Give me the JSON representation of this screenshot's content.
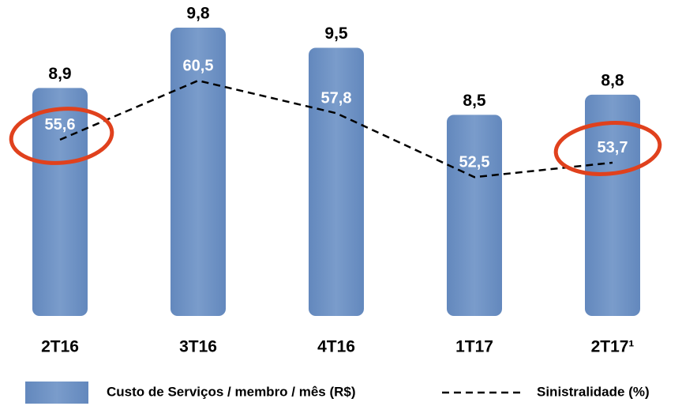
{
  "chart_data": {
    "type": "bar",
    "categories": [
      "2T16",
      "3T16",
      "4T16",
      "1T17",
      "2T17¹"
    ],
    "ylim": [
      5.5,
      10
    ],
    "y2lim": [
      41,
      66
    ],
    "series": [
      {
        "name": "Custo de Serviços / membro / mês (R$)",
        "type": "bar",
        "color": "#7093c4",
        "values": [
          8.9,
          9.8,
          9.5,
          8.5,
          8.8
        ],
        "value_labels": [
          "8,9",
          "9,8",
          "9,5",
          "8,5",
          "8,8"
        ]
      },
      {
        "name": "Sinistralidade (%)",
        "type": "line",
        "axis": "y2",
        "color": "#000000",
        "values": [
          55.6,
          60.5,
          57.8,
          52.5,
          53.7
        ],
        "value_labels": [
          "55,6",
          "60,5",
          "57,8",
          "52,5",
          "53,7"
        ]
      }
    ],
    "legend": "bottom"
  }
}
